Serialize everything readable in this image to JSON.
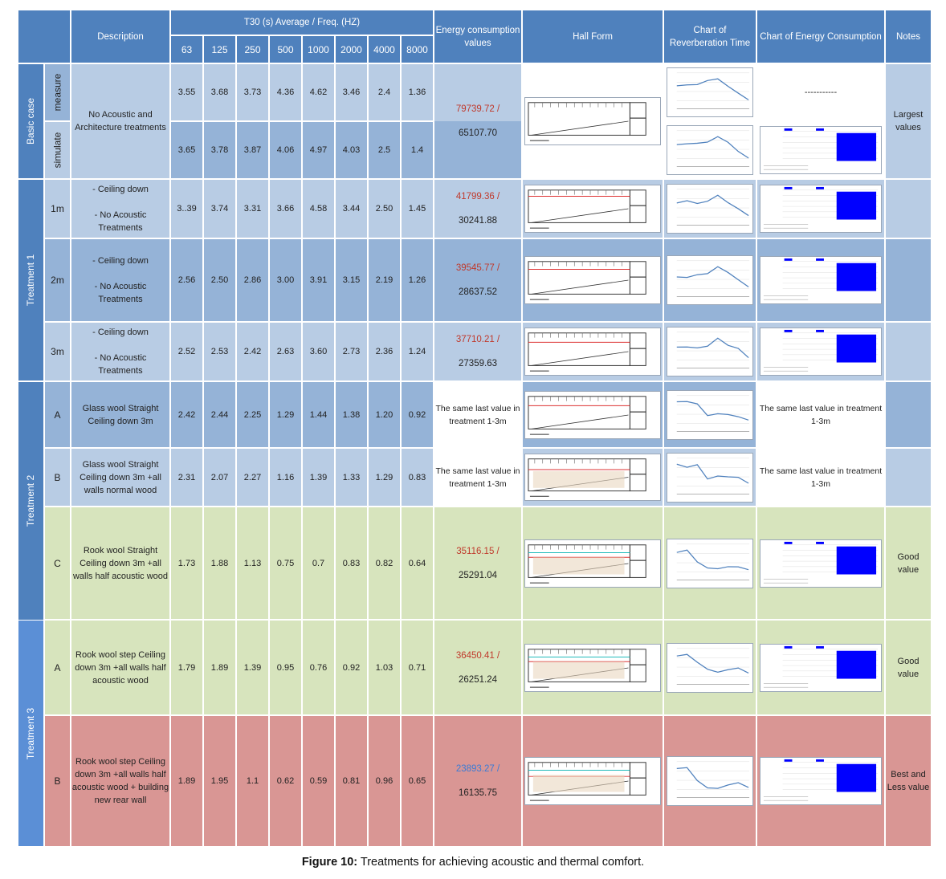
{
  "header": {
    "description": "Description",
    "t30_title": "T30 (s) Average / Freq. (HZ)",
    "freqs": [
      "63",
      "125",
      "250",
      "500",
      "1000",
      "2000",
      "4000",
      "8000"
    ],
    "energy": "Energy consumption values",
    "hall_form": "Hall Form",
    "chart_rt": "Chart of Reverberation Time",
    "chart_energy": "Chart of Energy Consumption",
    "notes": "Notes"
  },
  "groups": {
    "basic": "Basic case",
    "t1": "Treatment 1",
    "t2": "Treatment 2",
    "t3": "Treatment 3",
    "measure": "measure",
    "simulate": "simulate"
  },
  "rows": {
    "measure": {
      "values": [
        "3.55",
        "3.68",
        "3.73",
        "4.36",
        "4.62",
        "3.46",
        "2.4",
        "1.36"
      ]
    },
    "simulate": {
      "values": [
        "3.65",
        "3.78",
        "3.87",
        "4.06",
        "4.97",
        "4.03",
        "2.5",
        "1.4"
      ]
    },
    "basic_desc": "No Acoustic and Architecture treatments",
    "basic_energy_red": "79739.72 /",
    "basic_energy_black": "65107.70",
    "basic_energy_chart_measure": "-----------",
    "basic_notes": "Largest\nvalues",
    "t1_1m": {
      "label": "1m",
      "desc": "- Ceiling down\n\n- No Acoustic Treatments",
      "values": [
        "3..39",
        "3.74",
        "3.31",
        "3.66",
        "4.58",
        "3.44",
        "2.50",
        "1.45"
      ],
      "energy_red": "41799.36 /",
      "energy_black": "30241.88"
    },
    "t1_2m": {
      "label": "2m",
      "desc": "- Ceiling down\n\n- No Acoustic Treatments",
      "values": [
        "2.56",
        "2.50",
        "2.86",
        "3.00",
        "3.91",
        "3.15",
        "2.19",
        "1.26"
      ],
      "energy_red": "39545.77 /",
      "energy_black": "28637.52"
    },
    "t1_3m": {
      "label": "3m",
      "desc": "- Ceiling down\n\n- No Acoustic Treatments",
      "values": [
        "2.52",
        "2.53",
        "2.42",
        "2.63",
        "3.60",
        "2.73",
        "2.36",
        "1.24"
      ],
      "energy_red": "37710.21 /",
      "energy_black": "27359.63"
    },
    "t2_a": {
      "label": "A",
      "desc": "Glass wool Straight Ceiling down 3m",
      "values": [
        "2.42",
        "2.44",
        "2.25",
        "1.29",
        "1.44",
        "1.38",
        "1.20",
        "0.92"
      ],
      "energy_text": "The same last value in treatment 1-3m",
      "energy_chart_text": "The same last value in treatment 1-3m"
    },
    "t2_b": {
      "label": "B",
      "desc": "Glass wool Straight Ceiling down 3m +all walls normal wood",
      "values": [
        "2.31",
        "2.07",
        "2.27",
        "1.16",
        "1.39",
        "1.33",
        "1.29",
        "0.83"
      ],
      "energy_text": "The same last value in treatment 1-3m",
      "energy_chart_text": "The same last value in treatment 1-3m"
    },
    "t2_c": {
      "label": "C",
      "desc": "Rook wool Straight Ceiling down 3m +all walls half acoustic wood",
      "values": [
        "1.73",
        "1.88",
        "1.13",
        "0.75",
        "0.7",
        "0.83",
        "0.82",
        "0.64"
      ],
      "energy_red": "35116.15 /",
      "energy_black": "25291.04",
      "notes": "Good\nvalue"
    },
    "t3_a": {
      "label": "A",
      "desc": "Rook wool step Ceiling down 3m +all walls half acoustic wood",
      "values": [
        "1.79",
        "1.89",
        "1.39",
        "0.95",
        "0.76",
        "0.92",
        "1.03",
        "0.71"
      ],
      "energy_red": "36450.41 /",
      "energy_black": "26251.24",
      "notes": "Good\nvalue"
    },
    "t3_b": {
      "label": "B",
      "desc": "Rook wool step Ceiling down 3m +all walls half acoustic wood + building new rear wall",
      "values": [
        "1.89",
        "1.95",
        "1.1",
        "0.62",
        "0.59",
        "0.81",
        "0.96",
        "0.65"
      ],
      "energy_blue": "23893.27 /",
      "energy_black": "16135.75",
      "notes": "Best and\nLess value"
    }
  },
  "caption": {
    "label": "Figure 10:",
    "text": " Treatments for achieving acoustic and thermal comfort."
  },
  "colors": {
    "header": "#4f81bd",
    "light_blue": "#b8cce4",
    "mid_blue": "#95b3d7",
    "green": "#d7e4bd",
    "pink": "#d99694",
    "red": "#c0392b",
    "blue": "#3a7bd5",
    "bar": "#0000ff"
  }
}
